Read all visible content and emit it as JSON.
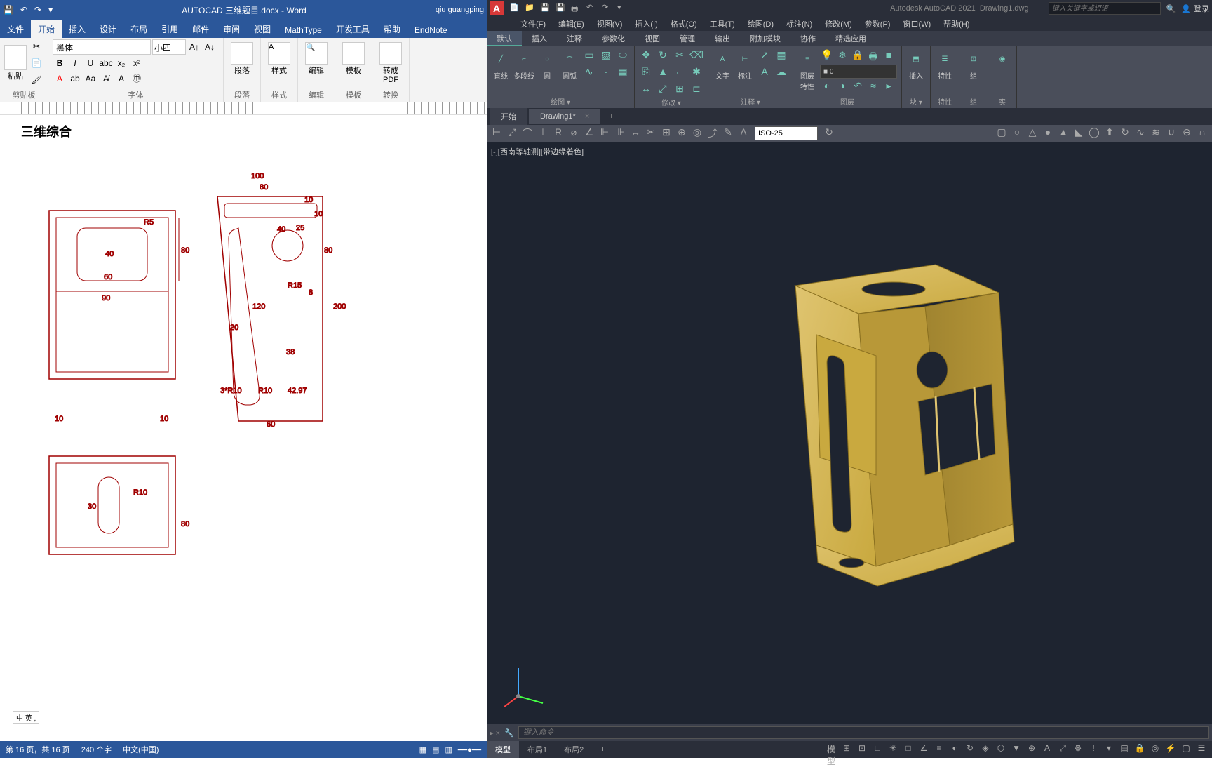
{
  "word": {
    "title": "AUTOCAD 三维题目.docx - Word",
    "user": "qiu guangping",
    "tabs": [
      "文件",
      "开始",
      "插入",
      "设计",
      "布局",
      "引用",
      "邮件",
      "审阅",
      "视图",
      "MathType",
      "开发工具",
      "帮助",
      "EndNote"
    ],
    "active_tab": 1,
    "ribbon": {
      "clipboard": {
        "label": "剪贴板",
        "paste": "粘贴"
      },
      "font": {
        "label": "字体",
        "family": "黑体",
        "size": "小四"
      },
      "paragraph": {
        "label": "段落",
        "btn": "段落"
      },
      "styles": {
        "label": "样式",
        "btn": "样式"
      },
      "editing": {
        "label": "编辑",
        "btn": "编辑"
      },
      "template": {
        "label": "模板",
        "btn": "模板"
      },
      "convert": {
        "label": "转换",
        "btn": "转成\nPDF"
      }
    },
    "doc_title": "三维综合",
    "dimensions": {
      "d100": "100",
      "d80a": "80",
      "d10a": "10",
      "d10b": "10",
      "d40": "40",
      "d25": "25",
      "dR5": "R5",
      "d80b": "80",
      "d40b": "40",
      "d60a": "60",
      "dR15": "R15",
      "d8": "8",
      "d200": "200",
      "d90": "90",
      "d120": "120",
      "d20": "20",
      "d38": "38",
      "d3R10": "3*R10",
      "dR10a": "R10",
      "d4297": "42.97",
      "d10c": "10",
      "d10d": "10",
      "d60b": "60",
      "dR10b": "R10",
      "d30": "30",
      "d80c": "80"
    },
    "status": {
      "page": "第 16 页，共 16 页",
      "words": "240 个字",
      "lang": "中文(中国)"
    },
    "lang_badge": "中 英 ,"
  },
  "autocad": {
    "title_app": "Autodesk AutoCAD 2021",
    "title_file": "Drawing1.dwg",
    "search_placeholder": "键入关键字或短语",
    "login": "登录",
    "menubar": [
      "文件(F)",
      "编辑(E)",
      "视图(V)",
      "插入(I)",
      "格式(O)",
      "工具(T)",
      "绘图(D)",
      "标注(N)",
      "修改(M)",
      "参数(P)",
      "窗口(W)",
      "帮助(H)"
    ],
    "rtabs": [
      "默认",
      "插入",
      "注释",
      "参数化",
      "视图",
      "管理",
      "输出",
      "附加模块",
      "协作",
      "精选应用"
    ],
    "active_rtab": 0,
    "ribbon": {
      "draw": {
        "label": "绘图 ▾",
        "line": "直线",
        "pline": "多段线",
        "circle": "圆",
        "arc": "圆弧"
      },
      "modify": {
        "label": "修改 ▾"
      },
      "annotate": {
        "label": "注释 ▾",
        "text": "文字",
        "dim": "标注"
      },
      "layers": {
        "label": "图层",
        "btn": "图层\n特性",
        "current": "■ 0"
      },
      "block": {
        "label": "块 ▾",
        "insert": "插入"
      },
      "props": {
        "label": "特性",
        "btn": "特性"
      },
      "group": {
        "label": "组",
        "btn": "组"
      },
      "util": {
        "label": "实"
      }
    },
    "doctabs": {
      "start": "开始",
      "drawing": "Drawing1*"
    },
    "iso": "ISO-25",
    "viewport_label": "[-][西南等轴测][带边缘着色]",
    "model_color": "#c9a93f",
    "model_shadow": "#a08430",
    "model_highlight": "#dfc470",
    "bg_color": "#1e2430",
    "cmd_placeholder": "键入命令",
    "btabs": [
      "模型",
      "布局1",
      "布局2"
    ]
  }
}
